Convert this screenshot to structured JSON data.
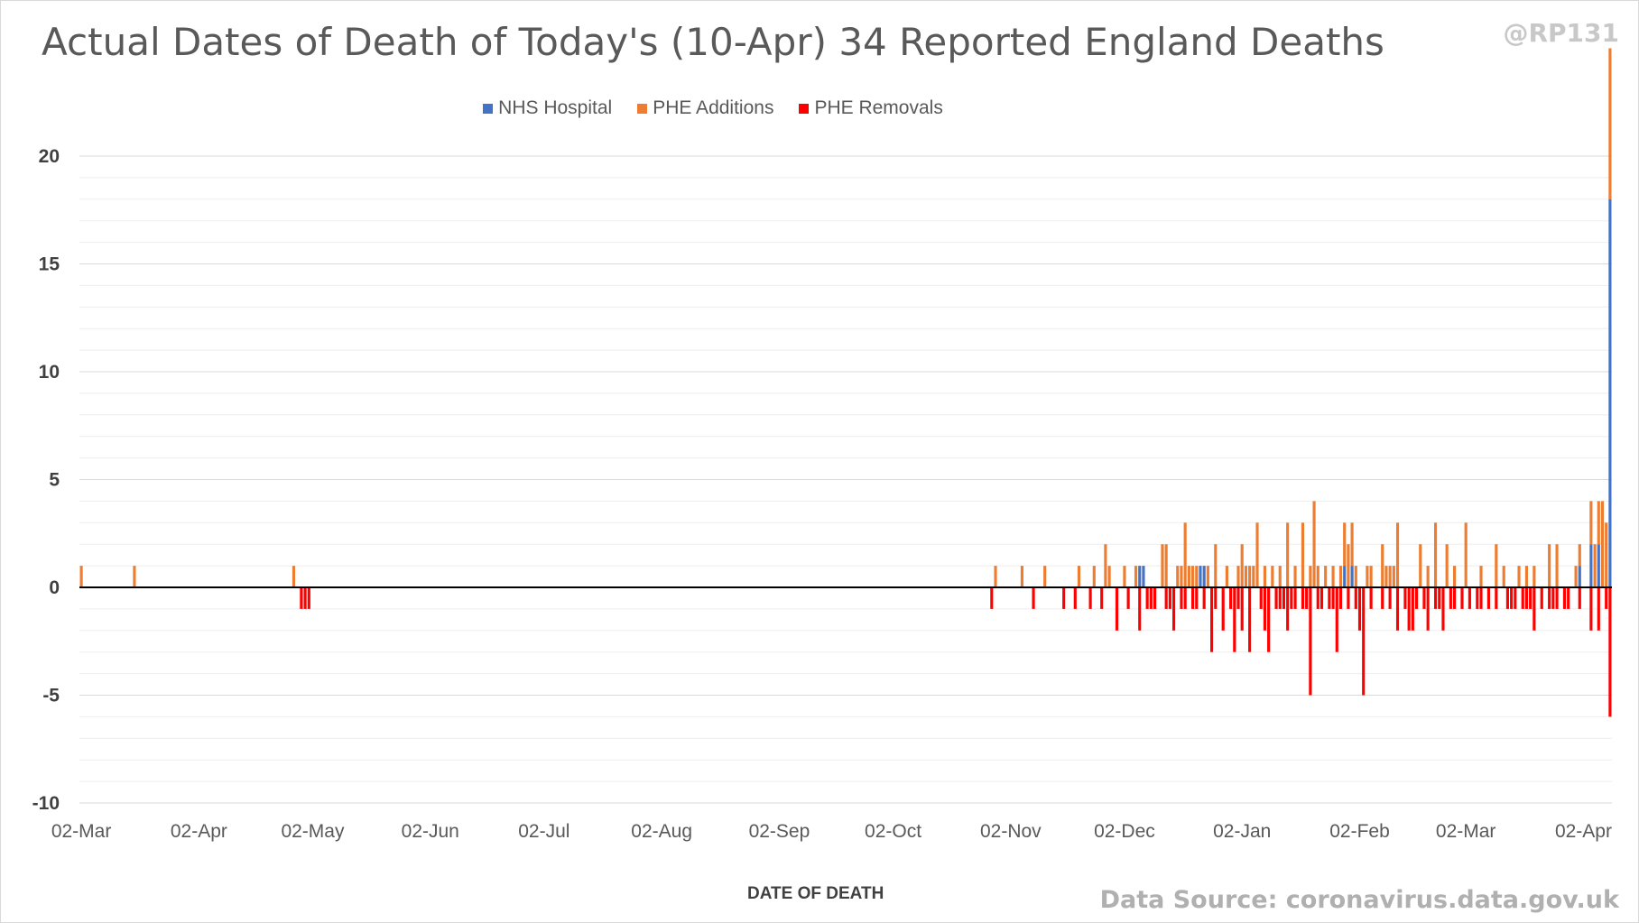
{
  "chart_data": {
    "type": "bar",
    "stacked": true,
    "title": "Actual Dates of Death of Today's (10-Apr) 34 Reported England Deaths",
    "xlabel": "DATE OF DEATH",
    "ylabel": "",
    "ylim": [
      -10,
      20
    ],
    "yticks": [
      -10,
      -5,
      0,
      5,
      10,
      15,
      20
    ],
    "x_range": [
      "2020-03-02",
      "2021-04-09"
    ],
    "xticks": [
      {
        "date": "2020-03-02",
        "label": "02-Mar"
      },
      {
        "date": "2020-04-02",
        "label": "02-Apr"
      },
      {
        "date": "2020-05-02",
        "label": "02-May"
      },
      {
        "date": "2020-06-02",
        "label": "02-Jun"
      },
      {
        "date": "2020-07-02",
        "label": "02-Jul"
      },
      {
        "date": "2020-08-02",
        "label": "02-Aug"
      },
      {
        "date": "2020-09-02",
        "label": "02-Sep"
      },
      {
        "date": "2020-10-02",
        "label": "02-Oct"
      },
      {
        "date": "2020-11-02",
        "label": "02-Nov"
      },
      {
        "date": "2020-12-02",
        "label": "02-Dec"
      },
      {
        "date": "2021-01-02",
        "label": "02-Jan"
      },
      {
        "date": "2021-02-02",
        "label": "02-Feb"
      },
      {
        "date": "2021-03-02",
        "label": "02-Mar"
      },
      {
        "date": "2021-04-02",
        "label": "02-Apr"
      }
    ],
    "grid": true,
    "legend_position": "top",
    "series": [
      {
        "name": "NHS Hospital",
        "color": "#4472c4",
        "points": [
          [
            "2020-12-06",
            1
          ],
          [
            "2020-12-07",
            1
          ],
          [
            "2020-12-22",
            1
          ],
          [
            "2020-12-23",
            1
          ],
          [
            "2021-01-29",
            1
          ],
          [
            "2021-01-31",
            1
          ],
          [
            "2021-04-01",
            1
          ],
          [
            "2021-04-04",
            2
          ],
          [
            "2021-04-06",
            2
          ],
          [
            "2021-04-09",
            18
          ]
        ]
      },
      {
        "name": "PHE Additions",
        "color": "#ed7d31",
        "points": [
          [
            "2020-03-02",
            1
          ],
          [
            "2020-03-16",
            1
          ],
          [
            "2020-04-27",
            1
          ],
          [
            "2020-10-29",
            1
          ],
          [
            "2020-11-05",
            1
          ],
          [
            "2020-11-11",
            1
          ],
          [
            "2020-11-20",
            1
          ],
          [
            "2020-11-24",
            1
          ],
          [
            "2020-11-27",
            2
          ],
          [
            "2020-11-28",
            1
          ],
          [
            "2020-12-02",
            1
          ],
          [
            "2020-12-05",
            1
          ],
          [
            "2020-12-12",
            2
          ],
          [
            "2020-12-13",
            2
          ],
          [
            "2020-12-16",
            1
          ],
          [
            "2020-12-17",
            1
          ],
          [
            "2020-12-18",
            3
          ],
          [
            "2020-12-19",
            1
          ],
          [
            "2020-12-20",
            1
          ],
          [
            "2020-12-21",
            1
          ],
          [
            "2020-12-24",
            1
          ],
          [
            "2020-12-26",
            2
          ],
          [
            "2020-12-29",
            1
          ],
          [
            "2021-01-01",
            1
          ],
          [
            "2021-01-02",
            2
          ],
          [
            "2021-01-03",
            1
          ],
          [
            "2021-01-04",
            1
          ],
          [
            "2021-01-05",
            1
          ],
          [
            "2021-01-06",
            3
          ],
          [
            "2021-01-08",
            1
          ],
          [
            "2021-01-10",
            1
          ],
          [
            "2021-01-12",
            1
          ],
          [
            "2021-01-14",
            3
          ],
          [
            "2021-01-16",
            1
          ],
          [
            "2021-01-18",
            3
          ],
          [
            "2021-01-20",
            1
          ],
          [
            "2021-01-21",
            4
          ],
          [
            "2021-01-22",
            1
          ],
          [
            "2021-01-24",
            1
          ],
          [
            "2021-01-26",
            1
          ],
          [
            "2021-01-28",
            1
          ],
          [
            "2021-01-29",
            2
          ],
          [
            "2021-01-30",
            2
          ],
          [
            "2021-01-31",
            2
          ],
          [
            "2021-02-01",
            1
          ],
          [
            "2021-02-04",
            1
          ],
          [
            "2021-02-05",
            1
          ],
          [
            "2021-02-08",
            2
          ],
          [
            "2021-02-09",
            1
          ],
          [
            "2021-02-10",
            1
          ],
          [
            "2021-02-11",
            1
          ],
          [
            "2021-02-12",
            3
          ],
          [
            "2021-02-18",
            2
          ],
          [
            "2021-02-20",
            1
          ],
          [
            "2021-02-22",
            3
          ],
          [
            "2021-02-25",
            2
          ],
          [
            "2021-02-27",
            1
          ],
          [
            "2021-03-02",
            3
          ],
          [
            "2021-03-06",
            1
          ],
          [
            "2021-03-10",
            2
          ],
          [
            "2021-03-12",
            1
          ],
          [
            "2021-03-16",
            1
          ],
          [
            "2021-03-18",
            1
          ],
          [
            "2021-03-20",
            1
          ],
          [
            "2021-03-24",
            2
          ],
          [
            "2021-03-26",
            2
          ],
          [
            "2021-03-31",
            1
          ],
          [
            "2021-04-01",
            1
          ],
          [
            "2021-04-04",
            2
          ],
          [
            "2021-04-05",
            2
          ],
          [
            "2021-04-06",
            2
          ],
          [
            "2021-04-07",
            4
          ],
          [
            "2021-04-08",
            3
          ],
          [
            "2021-04-09",
            7
          ]
        ]
      },
      {
        "name": "PHE Removals",
        "color": "#ff0000",
        "points": [
          [
            "2020-04-29",
            -1
          ],
          [
            "2020-04-30",
            -1
          ],
          [
            "2020-05-01",
            -1
          ],
          [
            "2020-10-28",
            -1
          ],
          [
            "2020-11-08",
            -1
          ],
          [
            "2020-11-16",
            -1
          ],
          [
            "2020-11-19",
            -1
          ],
          [
            "2020-11-23",
            -1
          ],
          [
            "2020-11-26",
            -1
          ],
          [
            "2020-11-30",
            -2
          ],
          [
            "2020-12-03",
            -1
          ],
          [
            "2020-12-06",
            -2
          ],
          [
            "2020-12-08",
            -1
          ],
          [
            "2020-12-09",
            -1
          ],
          [
            "2020-12-10",
            -1
          ],
          [
            "2020-12-13",
            -1
          ],
          [
            "2020-12-14",
            -1
          ],
          [
            "2020-12-15",
            -2
          ],
          [
            "2020-12-17",
            -1
          ],
          [
            "2020-12-18",
            -1
          ],
          [
            "2020-12-20",
            -1
          ],
          [
            "2020-12-21",
            -1
          ],
          [
            "2020-12-23",
            -1
          ],
          [
            "2020-12-25",
            -3
          ],
          [
            "2020-12-26",
            -1
          ],
          [
            "2020-12-28",
            -2
          ],
          [
            "2020-12-30",
            -1
          ],
          [
            "2020-12-31",
            -3
          ],
          [
            "2021-01-01",
            -1
          ],
          [
            "2021-01-02",
            -2
          ],
          [
            "2021-01-04",
            -3
          ],
          [
            "2021-01-07",
            -1
          ],
          [
            "2021-01-08",
            -2
          ],
          [
            "2021-01-09",
            -3
          ],
          [
            "2021-01-11",
            -1
          ],
          [
            "2021-01-12",
            -1
          ],
          [
            "2021-01-13",
            -1
          ],
          [
            "2021-01-14",
            -2
          ],
          [
            "2021-01-15",
            -1
          ],
          [
            "2021-01-16",
            -1
          ],
          [
            "2021-01-18",
            -1
          ],
          [
            "2021-01-19",
            -1
          ],
          [
            "2021-01-20",
            -5
          ],
          [
            "2021-01-22",
            -1
          ],
          [
            "2021-01-23",
            -1
          ],
          [
            "2021-01-25",
            -1
          ],
          [
            "2021-01-26",
            -1
          ],
          [
            "2021-01-27",
            -3
          ],
          [
            "2021-01-28",
            -1
          ],
          [
            "2021-01-30",
            -1
          ],
          [
            "2021-02-01",
            -1
          ],
          [
            "2021-02-02",
            -2
          ],
          [
            "2021-02-03",
            -5
          ],
          [
            "2021-02-05",
            -1
          ],
          [
            "2021-02-08",
            -1
          ],
          [
            "2021-02-10",
            -1
          ],
          [
            "2021-02-12",
            -2
          ],
          [
            "2021-02-14",
            -1
          ],
          [
            "2021-02-15",
            -2
          ],
          [
            "2021-02-16",
            -2
          ],
          [
            "2021-02-17",
            -1
          ],
          [
            "2021-02-19",
            -1
          ],
          [
            "2021-02-20",
            -2
          ],
          [
            "2021-02-22",
            -1
          ],
          [
            "2021-02-23",
            -1
          ],
          [
            "2021-02-24",
            -2
          ],
          [
            "2021-02-26",
            -1
          ],
          [
            "2021-02-27",
            -1
          ],
          [
            "2021-03-01",
            -1
          ],
          [
            "2021-03-03",
            -1
          ],
          [
            "2021-03-05",
            -1
          ],
          [
            "2021-03-06",
            -1
          ],
          [
            "2021-03-08",
            -1
          ],
          [
            "2021-03-10",
            -1
          ],
          [
            "2021-03-13",
            -1
          ],
          [
            "2021-03-14",
            -1
          ],
          [
            "2021-03-15",
            -1
          ],
          [
            "2021-03-17",
            -1
          ],
          [
            "2021-03-18",
            -1
          ],
          [
            "2021-03-19",
            -1
          ],
          [
            "2021-03-20",
            -2
          ],
          [
            "2021-03-22",
            -1
          ],
          [
            "2021-03-24",
            -1
          ],
          [
            "2021-03-25",
            -1
          ],
          [
            "2021-03-26",
            -1
          ],
          [
            "2021-03-28",
            -1
          ],
          [
            "2021-03-29",
            -1
          ],
          [
            "2021-04-01",
            -1
          ],
          [
            "2021-04-04",
            -2
          ],
          [
            "2021-04-06",
            -2
          ],
          [
            "2021-04-08",
            -1
          ],
          [
            "2021-04-09",
            -6
          ]
        ]
      }
    ]
  },
  "watermark": "@RP131",
  "source": "Data Source: coronavirus.data.gov.uk"
}
